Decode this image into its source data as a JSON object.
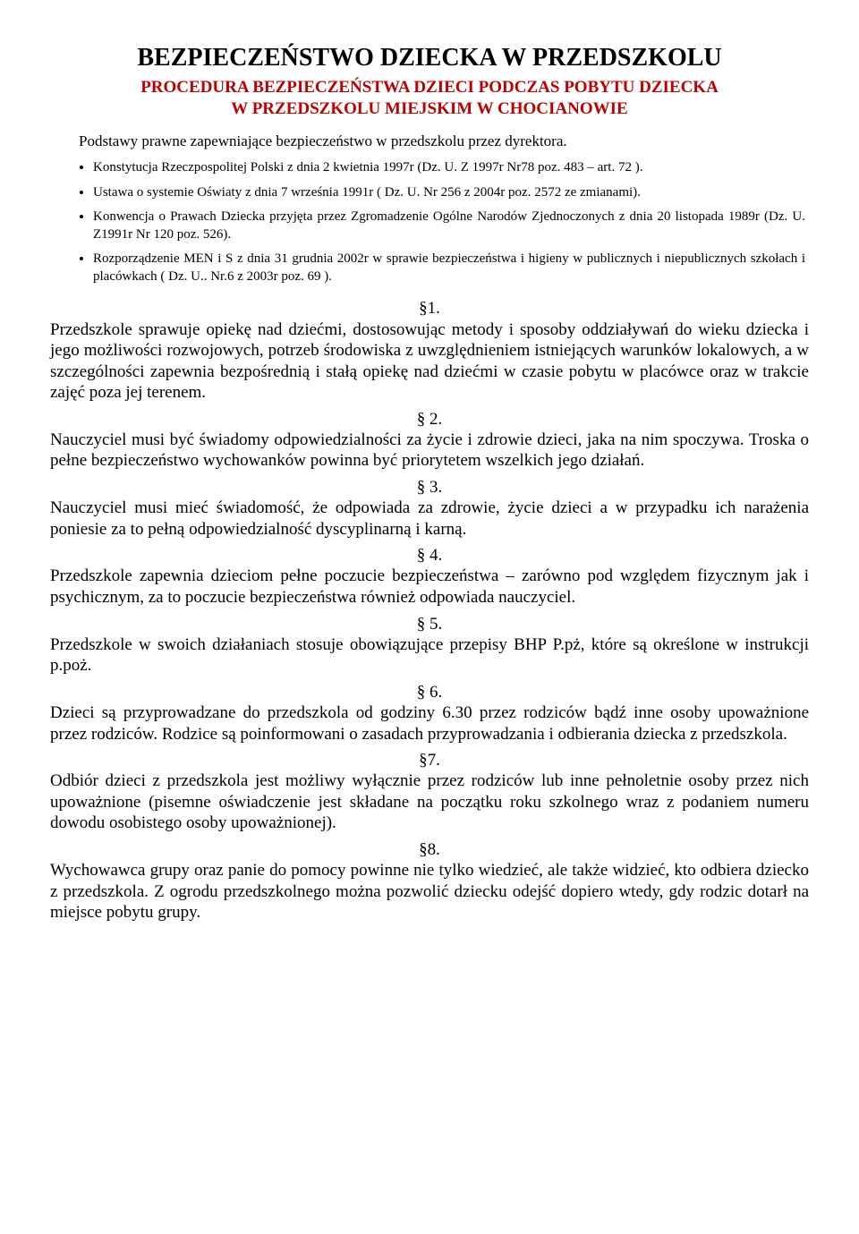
{
  "colors": {
    "red": "#c00000",
    "black": "#000000",
    "bg": "#ffffff"
  },
  "title": "BEZPIECZEŃSTWO DZIECKA W PRZEDSZKOLU",
  "subtitle_l1": "PROCEDURA BEZPIECZEŃSTWA DZIECI PODCZAS POBYTU DZIECKA",
  "subtitle_l2": "W PRZEDSZKOLU MIEJSKIM W CHOCIANOWIE",
  "intro": "Podstawy prawne zapewniające bezpieczeństwo w przedszkolu przez dyrektora.",
  "legal": [
    "Konstytucja Rzeczpospolitej Polski z dnia 2 kwietnia 1997r (Dz. U. Z 1997r Nr78 poz. 483 – art. 72 ).",
    "Ustawa o systemie Oświaty z dnia 7 września 1991r ( Dz. U. Nr 256 z 2004r poz. 2572 ze zmianami).",
    "Konwencja o Prawach Dziecka przyjęta  przez Zgromadzenie Ogólne  Narodów Zjednoczonych z dnia 20  listopada 1989r (Dz. U. Z1991r Nr 120 poz. 526).",
    "Rozporządzenie MEN i S z dnia 31 grudnia 2002r w sprawie bezpieczeństwa i higieny w publicznych i niepublicznych szkołach i placówkach ( Dz. U.. Nr.6 z 2003r poz. 69 )."
  ],
  "sections": [
    {
      "num": "§1.",
      "body": "Przedszkole sprawuje opiekę nad dziećmi, dostosowując metody i sposoby oddziaływań do wieku dziecka i jego możliwości rozwojowych, potrzeb środowiska z uwzględnieniem istniejących warunków lokalowych, a w szczególności zapewnia bezpośrednią i stałą opiekę nad dziećmi w czasie pobytu w placówce oraz w trakcie zajęć poza jej terenem."
    },
    {
      "num": "§ 2.",
      "body": "Nauczyciel musi być świadomy odpowiedzialności za życie i zdrowie dzieci, jaka na nim spoczywa. Troska o pełne bezpieczeństwo wychowanków powinna być priorytetem wszelkich jego działań."
    },
    {
      "num": "§ 3.",
      "body": "Nauczyciel musi mieć świadomość, że odpowiada za  zdrowie, życie  dzieci  a w przypadku ich narażenia poniesie za to pełną odpowiedzialność dyscyplinarną i karną."
    },
    {
      "num": "§ 4.",
      "body": "Przedszkole zapewnia dzieciom pełne poczucie bezpieczeństwa – zarówno pod względem fizycznym jak i psychicznym, za to poczucie bezpieczeństwa również odpowiada nauczyciel."
    },
    {
      "num": "§ 5.",
      "body": "Przedszkole w swoich działaniach stosuje obowiązujące przepisy BHP  P.pż, które są określone w instrukcji p.poż."
    },
    {
      "num": "§ 6.",
      "body": "Dzieci są przyprowadzane do przedszkola od godziny 6.30 przez rodziców bądź inne osoby upoważnione przez rodziców. Rodzice są poinformowani o zasadach przyprowadzania i odbierania dziecka z przedszkola."
    },
    {
      "num": "§7.",
      "body": "Odbiór dzieci z przedszkola jest możliwy wyłącznie przez rodziców lub inne pełnoletnie osoby przez nich upoważnione (pisemne oświadczenie jest składane na początku roku szkolnego wraz z podaniem numeru dowodu osobistego osoby upoważnionej)."
    },
    {
      "num": "§8.",
      "body": "Wychowawca grupy oraz panie do pomocy  powinne nie tylko wiedzieć, ale także widzieć, kto odbiera dziecko z przedszkola. Z ogrodu przedszkolnego można pozwolić dziecku odejść dopiero wtedy, gdy rodzic dotarł na miejsce pobytu grupy."
    }
  ]
}
